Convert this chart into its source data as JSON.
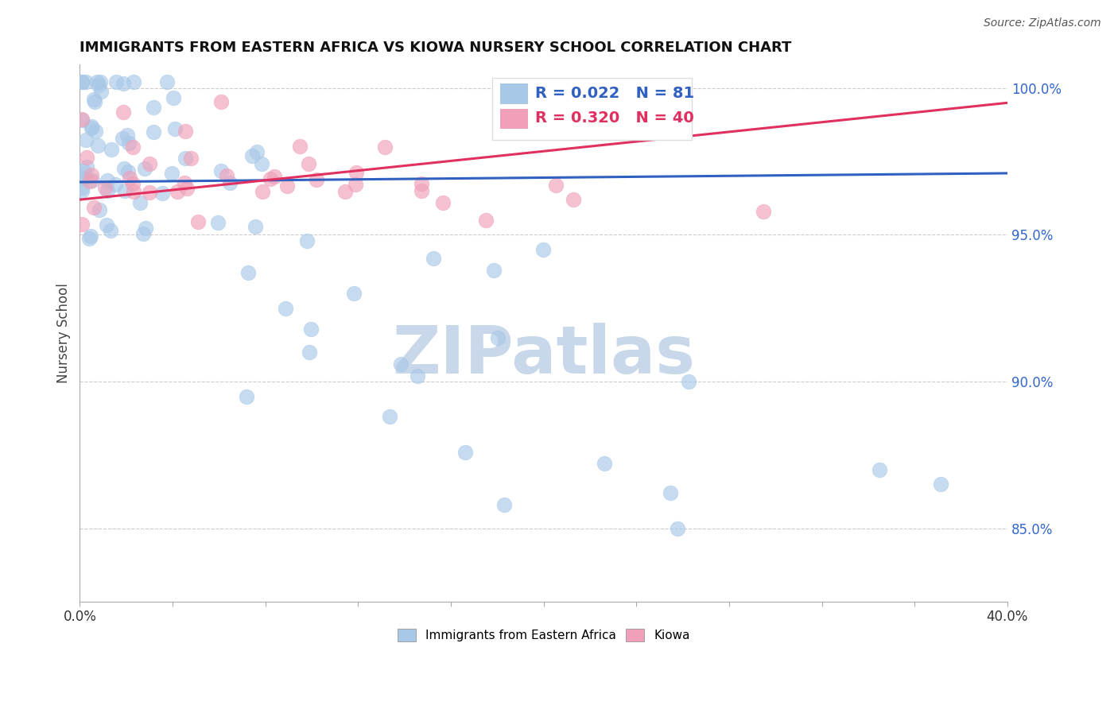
{
  "title": "IMMIGRANTS FROM EASTERN AFRICA VS KIOWA NURSERY SCHOOL CORRELATION CHART",
  "source": "Source: ZipAtlas.com",
  "ylabel": "Nursery School",
  "xlim": [
    0.0,
    0.4
  ],
  "ylim": [
    0.825,
    1.008
  ],
  "xticks": [
    0.0,
    0.04,
    0.08,
    0.12,
    0.16,
    0.2,
    0.24,
    0.28,
    0.32,
    0.36,
    0.4
  ],
  "xtick_labels": [
    "0.0%",
    "",
    "",
    "",
    "",
    "",
    "",
    "",
    "",
    "",
    "40.0%"
  ],
  "yticks_right": [
    0.85,
    0.9,
    0.95,
    1.0
  ],
  "ytick_right_labels": [
    "85.0%",
    "90.0%",
    "95.0%",
    "100.0%"
  ],
  "blue_label": "Immigrants from Eastern Africa",
  "pink_label": "Kiowa",
  "blue_R": "0.022",
  "blue_N": "81",
  "pink_R": "0.320",
  "pink_N": "40",
  "blue_color": "#a8c8e8",
  "pink_color": "#f0a0b8",
  "blue_line_color": "#3060c0",
  "pink_line_color": "#e03060",
  "watermark": "ZIPatlas",
  "watermark_color": "#c8d8ea",
  "legend_blue_color": "#3060c0",
  "legend_pink_color": "#e03060",
  "figsize": [
    14.06,
    8.92
  ],
  "dpi": 100
}
